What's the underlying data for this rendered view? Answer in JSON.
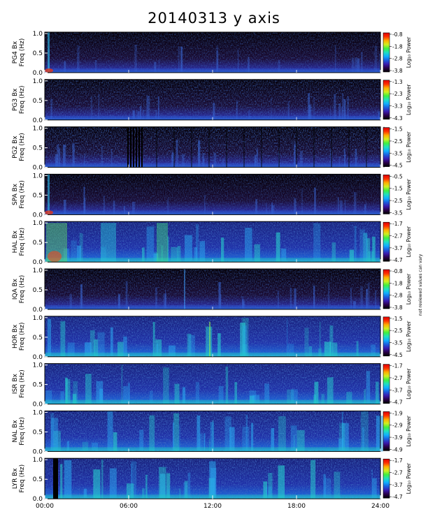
{
  "title": "20140313 y axis",
  "side_note": "not reviewed values can vary",
  "chart_data": {
    "type": "heatmap",
    "title": "20140313 y axis",
    "x_ticks": [
      "00:00",
      "06:00",
      "12:00",
      "18:00",
      "24:00"
    ],
    "x_range": [
      0,
      24
    ],
    "y_range": [
      0,
      1.0
    ],
    "y_ticks": [
      "0.0",
      "0.5",
      "1.0"
    ],
    "colorbar_label": "Log₁₀ Power",
    "colormap": [
      "#000000",
      "#2a004a",
      "#3a1bb0",
      "#1b5fe0",
      "#10b0ff",
      "#20e0c0",
      "#40f040",
      "#d0f020",
      "#ffb000",
      "#ff3000",
      "#e00000"
    ],
    "panels": [
      {
        "station": "PG4",
        "ylabel": "PG4 Bx\nFreq (Hz)",
        "cbar_ticks": [
          "-0.8",
          "-1.8",
          "-2.8",
          "-3.8"
        ],
        "base": 0.1
      },
      {
        "station": "PG3",
        "ylabel": "PG3 Bx\nFreq (Hz)",
        "cbar_ticks": [
          "-1.3",
          "-2.3",
          "-3.3",
          "-4.3"
        ],
        "base": 0.22
      },
      {
        "station": "PG2",
        "ylabel": "PG2 Bx\nFreq (Hz)",
        "cbar_ticks": [
          "-1.5",
          "-2.5",
          "-3.5",
          "-4.5"
        ],
        "base": 0.3
      },
      {
        "station": "SPA",
        "ylabel": "SPA Bx\nFreq (Hz)",
        "cbar_ticks": [
          "-0.5",
          "-1.5",
          "-2.5",
          "-3.5"
        ],
        "base": 0.08
      },
      {
        "station": "HAL",
        "ylabel": "HAL Bx\nFreq (Hz)",
        "cbar_ticks": [
          "-1.7",
          "-2.7",
          "-3.7",
          "-4.7"
        ],
        "base": 0.35
      },
      {
        "station": "IQA",
        "ylabel": "IQA Bx\nFreq (Hz)",
        "cbar_ticks": [
          "-0.8",
          "-1.8",
          "-2.8",
          "-3.8"
        ],
        "base": 0.12
      },
      {
        "station": "HOR",
        "ylabel": "HOR Bx\nFreq (Hz)",
        "cbar_ticks": [
          "-1.5",
          "-2.5",
          "-3.5",
          "-4.5"
        ],
        "base": 0.38
      },
      {
        "station": "ISR",
        "ylabel": "ISR Bx\nFreq (Hz)",
        "cbar_ticks": [
          "-1.7",
          "-2.7",
          "-3.7",
          "-4.7"
        ],
        "base": 0.4
      },
      {
        "station": "NAL",
        "ylabel": "NAL Bx\nFreq (Hz)",
        "cbar_ticks": [
          "-1.9",
          "-2.9",
          "-3.9",
          "-4.9"
        ],
        "base": 0.45
      },
      {
        "station": "LYR",
        "ylabel": "LYR Bx\nFreq (Hz)",
        "cbar_ticks": [
          "-1.7",
          "-2.7",
          "-3.7",
          "-4.7"
        ],
        "base": 0.38
      }
    ]
  }
}
